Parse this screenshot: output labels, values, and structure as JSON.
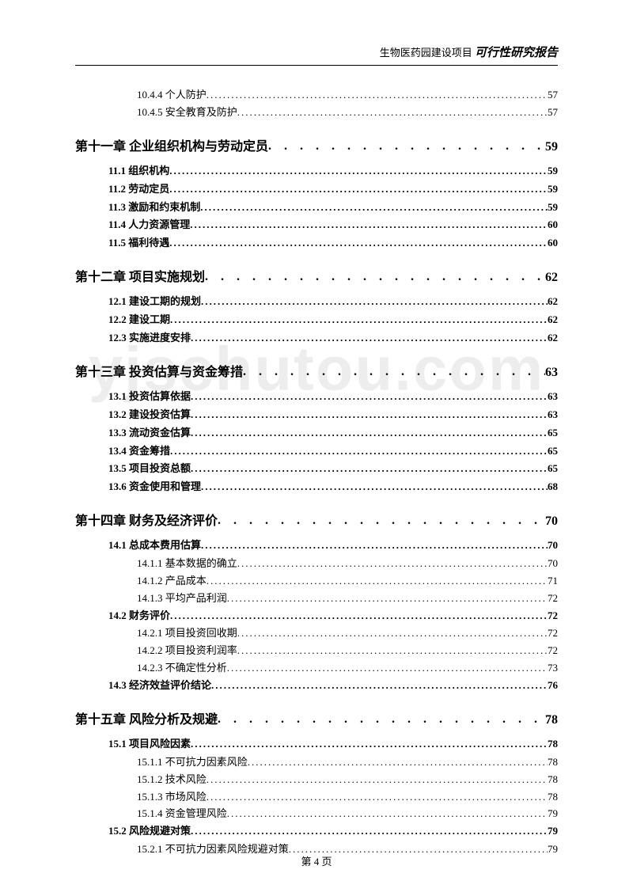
{
  "header": {
    "project": "生物医药园建设项目",
    "report": "可行性研究报告"
  },
  "watermark": "yjschutou.com",
  "footer": "第 4 页",
  "toc": [
    {
      "level": "subsection",
      "label": "10.4.4 个人防护",
      "page": "57"
    },
    {
      "level": "subsection",
      "label": "10.4.5 安全教育及防护",
      "page": "57"
    },
    {
      "level": "chapter",
      "label": "第十一章 企业组织机构与劳动定员",
      "page": "59"
    },
    {
      "level": "section",
      "label": "11.1 组织机构",
      "page": "59"
    },
    {
      "level": "section",
      "label": "11.2 劳动定员",
      "page": "59"
    },
    {
      "level": "section",
      "label": "11.3 激励和约束机制",
      "page": "59"
    },
    {
      "level": "section",
      "label": "11.4 人力资源管理",
      "page": "60"
    },
    {
      "level": "section",
      "label": "11.5 福利待遇",
      "page": "60"
    },
    {
      "level": "chapter",
      "label": "第十二章 项目实施规划",
      "page": "62"
    },
    {
      "level": "section",
      "label": "12.1 建设工期的规划",
      "page": "62"
    },
    {
      "level": "section",
      "label": "12.2 建设工期",
      "page": "62"
    },
    {
      "level": "section",
      "label": "12.3 实施进度安排",
      "page": "62"
    },
    {
      "level": "chapter",
      "label": "第十三章 投资估算与资金筹措",
      "page": "63"
    },
    {
      "level": "section",
      "label": "13.1 投资估算依据",
      "page": "63"
    },
    {
      "level": "section",
      "label": "13.2 建设投资估算",
      "page": "63"
    },
    {
      "level": "section",
      "label": "13.3 流动资金估算",
      "page": "65"
    },
    {
      "level": "section",
      "label": "13.4 资金筹措",
      "page": "65"
    },
    {
      "level": "section",
      "label": "13.5 项目投资总额",
      "page": "65"
    },
    {
      "level": "section",
      "label": "13.6 资金使用和管理",
      "page": "68"
    },
    {
      "level": "chapter",
      "label": "第十四章 财务及经济评价",
      "page": "70"
    },
    {
      "level": "section",
      "label": "14.1 总成本费用估算",
      "page": "70"
    },
    {
      "level": "subsection",
      "label": "14.1.1 基本数据的确立",
      "page": "70"
    },
    {
      "level": "subsection",
      "label": "14.1.2 产品成本",
      "page": "71"
    },
    {
      "level": "subsection",
      "label": "14.1.3 平均产品利润",
      "page": "72"
    },
    {
      "level": "section",
      "label": "14.2 财务评价",
      "page": "72"
    },
    {
      "level": "subsection",
      "label": "14.2.1 项目投资回收期",
      "page": "72"
    },
    {
      "level": "subsection",
      "label": "14.2.2 项目投资利润率",
      "page": "72"
    },
    {
      "level": "subsection",
      "label": "14.2.3 不确定性分析",
      "page": "73"
    },
    {
      "level": "section",
      "label": "14.3 经济效益评价结论",
      "page": "76"
    },
    {
      "level": "chapter",
      "label": "第十五章 风险分析及规避",
      "page": "78"
    },
    {
      "level": "section",
      "label": "15.1 项目风险因素",
      "page": "78"
    },
    {
      "level": "subsection",
      "label": "15.1.1 不可抗力因素风险",
      "page": "78"
    },
    {
      "level": "subsection",
      "label": "15.1.2 技术风险",
      "page": "78"
    },
    {
      "level": "subsection",
      "label": "15.1.3 市场风险",
      "page": "78"
    },
    {
      "level": "subsection",
      "label": "15.1.4 资金管理风险",
      "page": "79"
    },
    {
      "level": "section",
      "label": "15.2 风险规避对策",
      "page": "79"
    },
    {
      "level": "subsection",
      "label": "15.2.1 不可抗力因素风险规避对策",
      "page": "79"
    }
  ]
}
